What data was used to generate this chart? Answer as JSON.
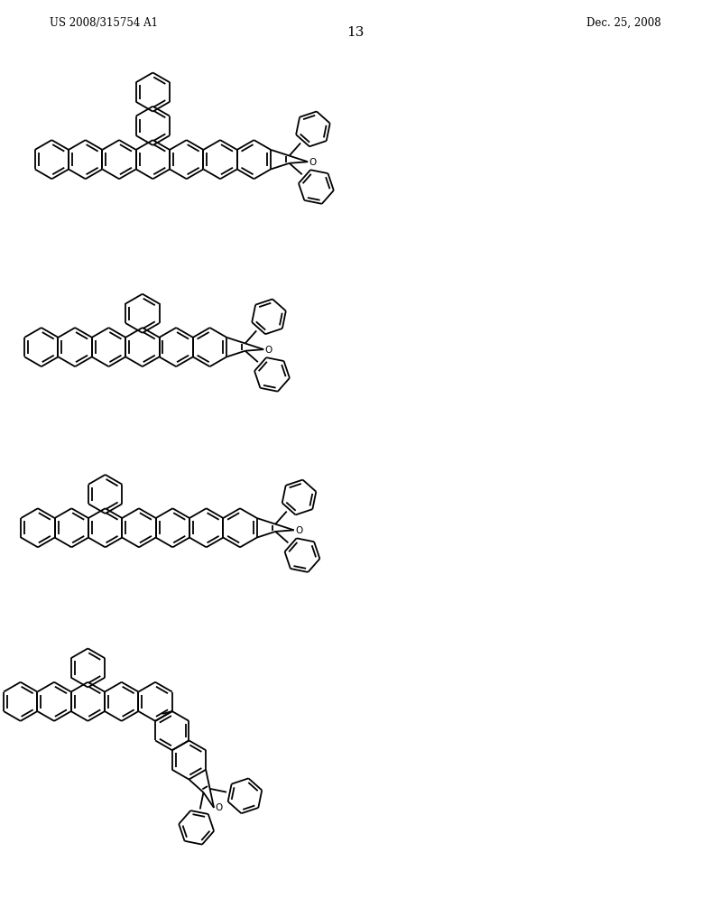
{
  "page_number": "13",
  "patent_number": "US 2008/315754 A1",
  "patent_date": "Dec. 25, 2008",
  "background_color": "#ffffff",
  "line_color": "#000000",
  "line_width": 1.3,
  "text_color": "#000000"
}
